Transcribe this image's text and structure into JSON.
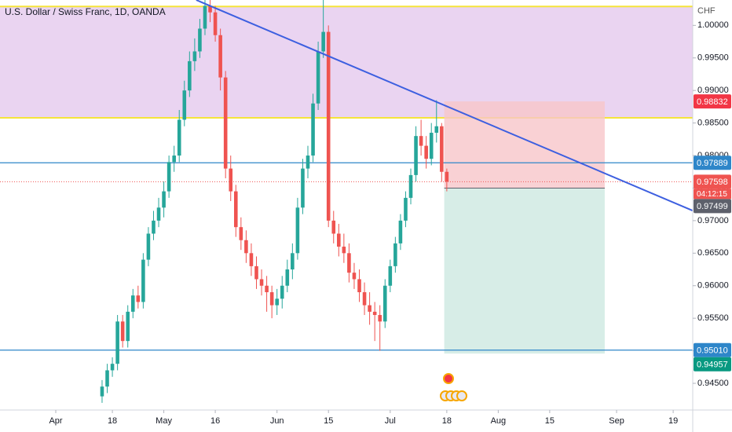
{
  "chart_data": {
    "type": "candlestick",
    "title": "U.S. Dollar / Swiss Franc, 1D, OANDA",
    "currency": "CHF",
    "x": [
      9,
      10,
      11,
      12,
      13,
      14,
      15,
      16,
      17,
      18,
      19,
      20,
      21,
      22,
      23,
      24,
      25,
      26,
      27,
      28,
      29,
      30,
      31,
      32,
      33,
      34,
      35,
      36,
      37,
      38,
      39,
      40,
      41,
      42,
      43,
      44,
      45,
      46,
      47,
      48,
      49,
      50,
      51,
      52,
      53,
      54,
      55,
      56,
      57,
      58,
      59,
      60,
      61,
      62,
      63,
      64,
      65,
      66,
      67,
      68,
      69,
      70,
      71,
      72,
      73,
      74,
      75,
      76
    ],
    "open": [
      0.943,
      0.9445,
      0.947,
      0.948,
      0.9545,
      0.9515,
      0.956,
      0.9585,
      0.9575,
      0.964,
      0.968,
      0.97,
      0.972,
      0.9745,
      0.979,
      0.98,
      0.9855,
      0.99,
      0.9945,
      0.996,
      0.9995,
      1.003,
      1.002,
      0.9985,
      0.992,
      0.978,
      0.9745,
      0.969,
      0.967,
      0.965,
      0.963,
      0.961,
      0.96,
      0.959,
      0.957,
      0.958,
      0.96,
      0.9625,
      0.965,
      0.972,
      0.978,
      0.98,
      0.988,
      0.996,
      0.999,
      0.97,
      0.968,
      0.966,
      0.965,
      0.962,
      0.961,
      0.959,
      0.957,
      0.956,
      0.9555,
      0.9545,
      0.96,
      0.963,
      0.9665,
      0.97,
      0.9735,
      0.977,
      0.983,
      0.9815,
      0.9795,
      0.9835,
      0.9845,
      0.9775
    ],
    "high": [
      0.9455,
      0.948,
      0.949,
      0.9555,
      0.9555,
      0.957,
      0.9595,
      0.96,
      0.965,
      0.969,
      0.9715,
      0.9735,
      0.976,
      0.98,
      0.9815,
      0.987,
      0.9915,
      0.996,
      0.998,
      1.001,
      1.0045,
      1.004,
      1.003,
      0.9995,
      0.993,
      0.98,
      0.9755,
      0.9705,
      0.9685,
      0.9665,
      0.9645,
      0.9625,
      0.9615,
      0.96,
      0.9595,
      0.9615,
      0.964,
      0.9665,
      0.9735,
      0.9795,
      0.9815,
      0.9895,
      0.9975,
      1.0045,
      1.0,
      0.9715,
      0.9695,
      0.968,
      0.9665,
      0.9635,
      0.9625,
      0.9605,
      0.959,
      0.9575,
      0.957,
      0.961,
      0.964,
      0.9675,
      0.971,
      0.9745,
      0.978,
      0.9845,
      0.9855,
      0.983,
      0.985,
      0.9885,
      0.985,
      0.978
    ],
    "low": [
      0.942,
      0.9435,
      0.946,
      0.947,
      0.9505,
      0.9505,
      0.955,
      0.9565,
      0.9565,
      0.963,
      0.967,
      0.969,
      0.9705,
      0.9735,
      0.9775,
      0.979,
      0.9845,
      0.989,
      0.993,
      0.995,
      0.9985,
      1.0005,
      0.9975,
      0.99,
      0.9765,
      0.973,
      0.9675,
      0.9655,
      0.9635,
      0.9615,
      0.9595,
      0.9585,
      0.956,
      0.955,
      0.9555,
      0.9565,
      0.959,
      0.961,
      0.964,
      0.971,
      0.9765,
      0.979,
      0.987,
      0.995,
      0.969,
      0.9665,
      0.9645,
      0.9635,
      0.9605,
      0.9595,
      0.9575,
      0.9555,
      0.954,
      0.9515,
      0.95,
      0.9535,
      0.959,
      0.962,
      0.9655,
      0.969,
      0.9725,
      0.976,
      0.98,
      0.978,
      0.9785,
      0.982,
      0.976,
      0.9745
    ],
    "close": [
      0.9445,
      0.947,
      0.948,
      0.9545,
      0.9515,
      0.956,
      0.9585,
      0.9575,
      0.964,
      0.968,
      0.97,
      0.972,
      0.9745,
      0.979,
      0.98,
      0.9855,
      0.99,
      0.9945,
      0.996,
      0.9995,
      1.003,
      1.002,
      0.9985,
      0.992,
      0.978,
      0.9745,
      0.969,
      0.967,
      0.965,
      0.963,
      0.961,
      0.96,
      0.959,
      0.957,
      0.958,
      0.96,
      0.9625,
      0.965,
      0.972,
      0.978,
      0.98,
      0.988,
      0.996,
      0.999,
      0.97,
      0.968,
      0.966,
      0.965,
      0.962,
      0.961,
      0.959,
      0.957,
      0.956,
      0.9555,
      0.9545,
      0.96,
      0.963,
      0.9665,
      0.97,
      0.9735,
      0.977,
      0.983,
      0.9815,
      0.9795,
      0.9835,
      0.9845,
      0.9775,
      0.976
    ],
    "up_color": "#26a69a",
    "down_color": "#ef5350",
    "xlim": [
      -10.84,
      123.8
    ],
    "ylim": [
      0.9409,
      1.0039
    ],
    "grid": false,
    "xticks": [
      {
        "value": 0,
        "label": "Apr"
      },
      {
        "value": 11,
        "label": "18"
      },
      {
        "value": 21,
        "label": "May"
      },
      {
        "value": 31,
        "label": "16"
      },
      {
        "value": 43,
        "label": "Jun"
      },
      {
        "value": 53,
        "label": "15"
      },
      {
        "value": 65,
        "label": "Jul"
      },
      {
        "value": 76,
        "label": "18"
      },
      {
        "value": 86,
        "label": "Aug"
      },
      {
        "value": 96,
        "label": "15"
      },
      {
        "value": 109,
        "label": "Sep"
      },
      {
        "value": 120,
        "label": "19"
      }
    ],
    "yticks": [
      {
        "value": 0.945,
        "label": "0.94500"
      },
      {
        "value": 0.95,
        "label": "0.95000"
      },
      {
        "value": 0.955,
        "label": "0.95500"
      },
      {
        "value": 0.96,
        "label": "0.96000"
      },
      {
        "value": 0.965,
        "label": "0.96500"
      },
      {
        "value": 0.97,
        "label": "0.97000"
      },
      {
        "value": 0.975,
        "label": "0.97500"
      },
      {
        "value": 0.98,
        "label": "0.98000"
      },
      {
        "value": 0.985,
        "label": "0.98500"
      },
      {
        "value": 0.99,
        "label": "0.99000"
      },
      {
        "value": 0.995,
        "label": "0.99500"
      },
      {
        "value": 1,
        "label": "1.00000"
      }
    ],
    "zone": {
      "range": [
        0.9858,
        1.0029
      ],
      "color": "#e6cdee",
      "edge_color": "#f5e43a"
    },
    "trendline": {
      "x": [
        27.3,
        123.8
      ],
      "y": [
        1.0039,
        0.97153
      ],
      "color": "#3d5fe0"
    },
    "levels": [
      {
        "value": 0.97889,
        "color": "#2e86c9"
      },
      {
        "value": 0.9501,
        "color": "#2e86c9"
      }
    ],
    "position": {
      "x": [
        75.5,
        106.7
      ],
      "stop": 0.98832,
      "entry": 0.97499,
      "target": 0.94957,
      "stop_color": "#f7c6c9",
      "target_color": "#d3ebe4"
    },
    "last_price": {
      "value": 0.97598,
      "countdown": "04:12:15",
      "color": "#ef5350"
    },
    "price_tags": [
      {
        "value": 0.98832,
        "color": "#f23645"
      },
      {
        "value": 0.97889,
        "color": "#2e86c9"
      },
      {
        "value": 0.97598,
        "color": "#ef5350"
      },
      {
        "value": 0.97499,
        "color": "#5d606b"
      },
      {
        "value": 0.9501,
        "label": "0.95010",
        "color": "#2e86c9"
      },
      {
        "value": 0.94957,
        "color": "#089981"
      }
    ]
  }
}
